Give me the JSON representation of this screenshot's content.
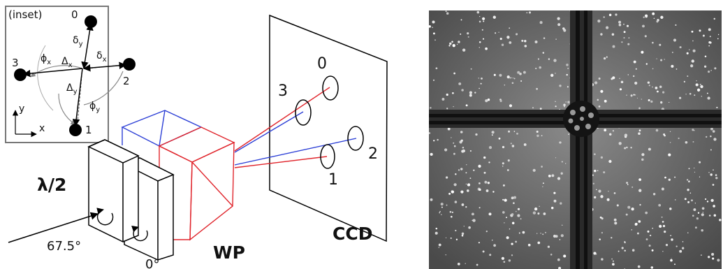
{
  "inset": {
    "title": "(inset)",
    "spots": [
      "0",
      "1",
      "2",
      "3"
    ],
    "delta": "δ",
    "Delta": "Δ",
    "phi": "ϕ",
    "sub_x": "x",
    "sub_y": "y",
    "axis_x": "x",
    "axis_y": "y"
  },
  "setup": {
    "halfwave_label": "λ/2",
    "angle_1": "67.5°",
    "angle_2": "0°",
    "prism_label": "WP",
    "screen_label": "CCD",
    "spot_labels": [
      "0",
      "1",
      "2",
      "3"
    ]
  },
  "colors": {
    "red": "#e0242b",
    "blue": "#2c3fd6",
    "black": "#000000",
    "gray": "#777777"
  }
}
